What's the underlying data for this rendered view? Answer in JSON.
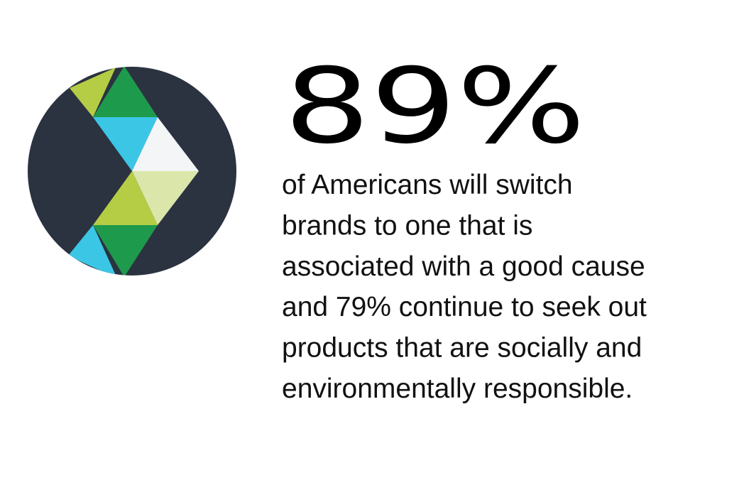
{
  "stat": "89%",
  "description": {
    "lines": [
      "of Americans will switch",
      "brands to one that is",
      "associated with a good cause",
      "and 79% continue to seek out",
      "products that are socially and",
      "environmentally responsible."
    ]
  }
}
